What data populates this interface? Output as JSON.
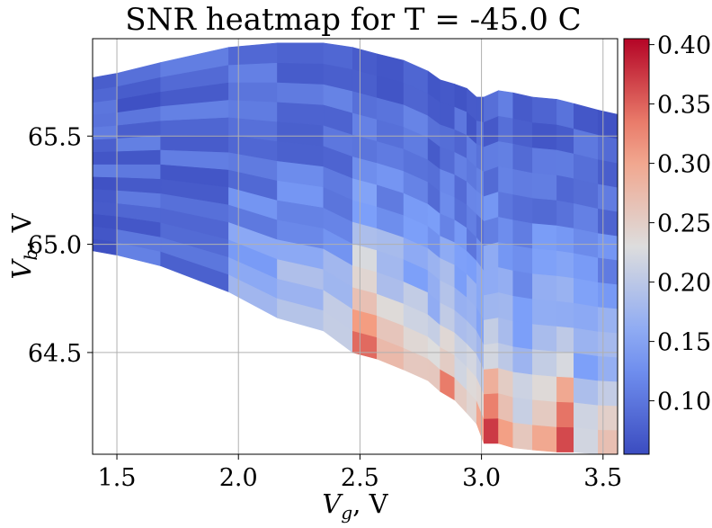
{
  "chart_data": {
    "type": "heatmap",
    "title": "SNR heatmap for T = -45.0 C",
    "xlabel": "V_g, V",
    "ylabel": "V_b, V",
    "xlim": [
      1.4,
      3.56
    ],
    "ylim": [
      64.03,
      65.95
    ],
    "x_ticks": [
      "1.5",
      "2.0",
      "2.5",
      "3.0",
      "3.5"
    ],
    "y_ticks": [
      "64.5",
      "65.0",
      "65.5"
    ],
    "colorbar": {
      "range": [
        0.055,
        0.405
      ],
      "ticks": [
        "0.10",
        "0.15",
        "0.20",
        "0.25",
        "0.30",
        "0.35",
        "0.40"
      ],
      "colormap": "coolwarm"
    },
    "grid": true,
    "x_columns": [
      1.4,
      1.5,
      1.68,
      1.96,
      2.16,
      2.35,
      2.47,
      2.57,
      2.68,
      2.78,
      2.83,
      2.89,
      2.94,
      2.98,
      3.01,
      3.07,
      3.13,
      3.21,
      3.31,
      3.38,
      3.48,
      3.56
    ],
    "v_top": [
      65.77,
      65.79,
      65.84,
      65.91,
      65.93,
      65.93,
      65.91,
      65.88,
      65.85,
      65.8,
      65.76,
      65.74,
      65.72,
      65.68,
      65.68,
      65.71,
      65.7,
      65.68,
      65.67,
      65.65,
      65.62,
      65.6
    ],
    "v_bottom": [
      64.97,
      64.95,
      64.9,
      64.78,
      64.66,
      64.6,
      64.5,
      64.47,
      64.42,
      64.37,
      64.32,
      64.28,
      64.22,
      64.17,
      64.08,
      64.08,
      64.06,
      64.05,
      64.04,
      64.04,
      64.03,
      64.03
    ],
    "snr_low_edge": [
      0.08,
      0.09,
      0.1,
      0.18,
      0.21,
      0.22,
      0.36,
      0.31,
      0.28,
      0.27,
      0.33,
      0.25,
      0.27,
      0.29,
      0.38,
      0.33,
      0.25,
      0.32,
      0.38,
      0.24,
      0.27,
      0.25
    ],
    "rows_per_column": 14
  }
}
